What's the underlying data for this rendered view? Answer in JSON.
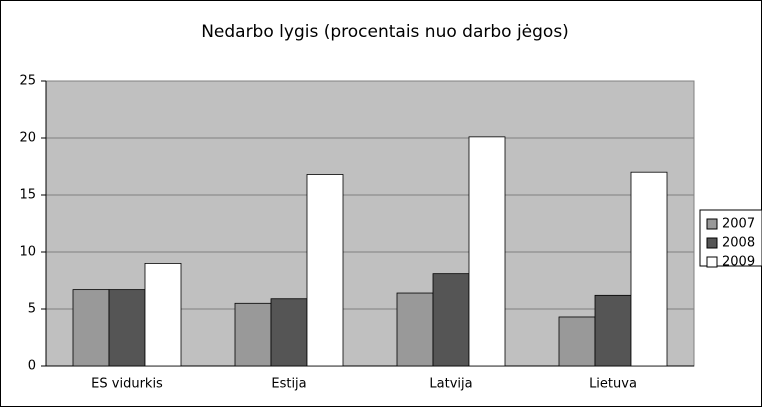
{
  "chart_data": {
    "type": "bar",
    "title": "Nedarbo lygis (procentais nuo darbo jėgos)",
    "categories": [
      "ES vidurkis",
      "Estija",
      "Latvija",
      "Lietuva"
    ],
    "series": [
      {
        "name": "2007",
        "color": "#999999",
        "values": [
          6.7,
          5.5,
          6.4,
          4.3
        ]
      },
      {
        "name": "2008",
        "color": "#555555",
        "values": [
          6.7,
          5.9,
          8.1,
          6.2
        ]
      },
      {
        "name": "2009",
        "color": "#ffffff",
        "values": [
          9.0,
          16.8,
          20.1,
          17.0
        ]
      }
    ],
    "ylim": [
      0,
      25
    ],
    "yticks": [
      0,
      5,
      10,
      15,
      20,
      25
    ],
    "grid": true,
    "legend": "right"
  }
}
